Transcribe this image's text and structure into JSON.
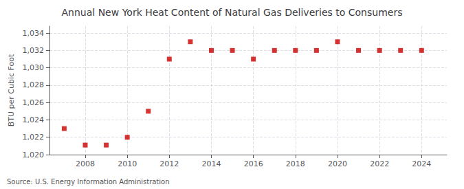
{
  "chart_data": {
    "type": "scatter",
    "title": "Annual New York Heat Content of Natural Gas Deliveries to Consumers",
    "ylabel": "BTU per Cubic Foot",
    "source": "Source: U.S. Energy Information Administration",
    "x": [
      2007,
      2008,
      2009,
      2010,
      2011,
      2012,
      2013,
      2014,
      2015,
      2016,
      2017,
      2018,
      2019,
      2020,
      2021,
      2022,
      2023,
      2024
    ],
    "values": [
      1023.0,
      1021.1,
      1021.1,
      1022.0,
      1025.0,
      1031.0,
      1033.0,
      1032.0,
      1032.0,
      1031.0,
      1032.0,
      1032.0,
      1032.0,
      1033.0,
      1032.0,
      1032.0,
      1032.0,
      1032.0
    ],
    "color": "#cc0000",
    "marker": "square",
    "xlim": [
      2006.3,
      2025.2
    ],
    "xticks": [
      2008,
      2010,
      2012,
      2014,
      2016,
      2018,
      2020,
      2022,
      2024
    ],
    "ylim": [
      1020,
      1034.8
    ],
    "yticks": [
      {
        "value": 1020,
        "label": "1,020"
      },
      {
        "value": 1022,
        "label": "1,022"
      },
      {
        "value": 1024,
        "label": "1,024"
      },
      {
        "value": 1026,
        "label": "1,026"
      },
      {
        "value": 1028,
        "label": "1,028"
      },
      {
        "value": 1030,
        "label": "1,030"
      },
      {
        "value": 1032,
        "label": "1,032"
      },
      {
        "value": 1034,
        "label": "1,034"
      }
    ],
    "grid": true
  }
}
